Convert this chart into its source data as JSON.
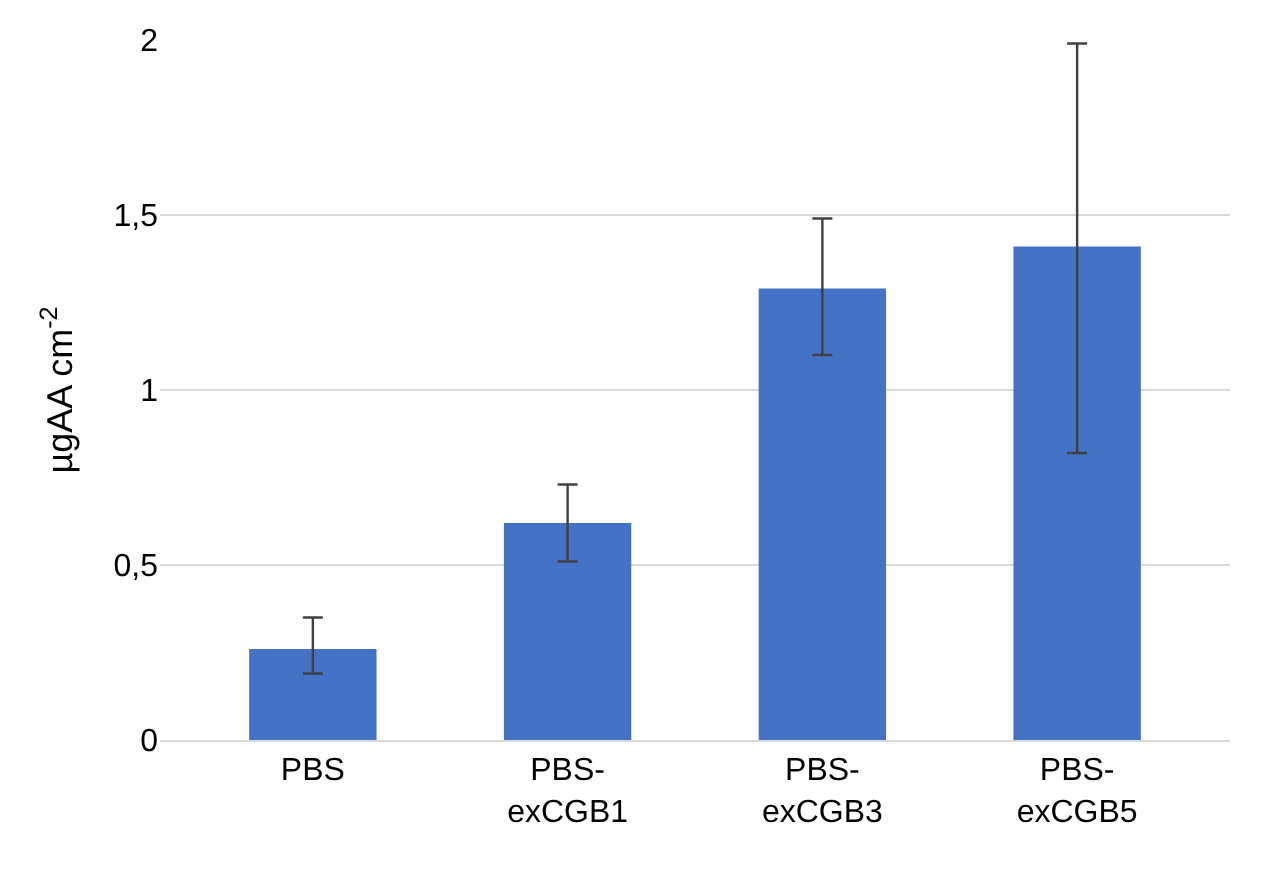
{
  "chart_data": {
    "type": "bar",
    "categories": [
      "PBS",
      "PBS-\nexCGB1",
      "PBS-\nexCGB3",
      "PBS-\nexCGB5"
    ],
    "values": [
      0.26,
      0.62,
      1.29,
      1.41
    ],
    "errors": [
      [
        0.19,
        0.35
      ],
      [
        0.51,
        0.73
      ],
      [
        1.1,
        1.49
      ],
      [
        0.82,
        1.99
      ]
    ],
    "color": "#4472c4",
    "ylabel": "µgAA cm$^{-2}$",
    "ylim": [
      0,
      2
    ],
    "yticks": [
      0,
      {
        "value": 0.5,
        "label": "0,5"
      },
      1,
      {
        "value": 1.5,
        "label": "1,5"
      },
      2
    ],
    "grid": "y"
  }
}
